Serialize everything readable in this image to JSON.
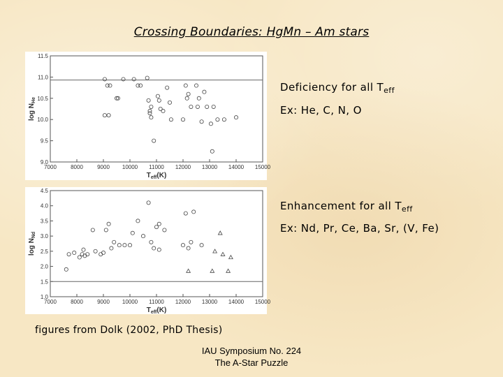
{
  "slide": {
    "title": "Crossing Boundaries:  HgMn – Am stars",
    "note1_text": "Deficiency for all T",
    "note1_sub": "eff",
    "note2_text": "Ex:  He, C, N, O",
    "note3_text": "Enhancement for all T",
    "note3_sub": "eff",
    "note4_text": "Ex:  Nd, Pr, Ce, Ba, Sr, (V, Fe)",
    "source": "figures from Dolk (2002, PhD Thesis)",
    "footer_line1": "IAU Symposium No. 224",
    "footer_line2": "The A-Star Puzzle"
  },
  "chart_data": [
    {
      "type": "scatter",
      "xlabel_main": "T",
      "xlabel_sub": "eff",
      "xlabel_end": "(K)",
      "ylabel_main": "log N",
      "ylabel_sub": "He",
      "xlim": [
        7000,
        15000
      ],
      "ylim": [
        9.0,
        11.5
      ],
      "xticks": [
        7000,
        8000,
        9000,
        10000,
        11000,
        12000,
        13000,
        14000,
        15000
      ],
      "yticks": [
        9.0,
        9.5,
        10.0,
        10.5,
        11.0,
        11.5
      ],
      "ytick_labels": [
        "9.0",
        "9.5",
        "10.0",
        "10.5",
        "11.0",
        "11.5"
      ],
      "reference_line": 10.93,
      "grid": false,
      "series": [
        {
          "marker": "circle",
          "x": [
            9050,
            9150,
            9250,
            9050,
            9200,
            9500,
            9550,
            9750,
            10150,
            10300,
            10400,
            10650,
            10700,
            10800,
            10750,
            10800,
            10900,
            11050,
            11100,
            11150,
            11250,
            11400,
            11500,
            11550,
            12000,
            12100,
            12150,
            12200,
            12300,
            12500,
            12600,
            12550,
            12700,
            12800,
            12900,
            13050,
            13150,
            13300,
            13100,
            10750,
            13550,
            14000
          ],
          "y": [
            10.95,
            10.8,
            10.8,
            10.1,
            10.1,
            10.5,
            10.5,
            10.95,
            10.95,
            10.8,
            10.8,
            10.98,
            10.45,
            10.3,
            10.2,
            10.05,
            9.5,
            10.55,
            10.45,
            10.25,
            10.2,
            10.75,
            10.4,
            10.0,
            10.0,
            10.8,
            10.5,
            10.6,
            10.3,
            10.8,
            10.5,
            10.3,
            9.95,
            10.65,
            10.3,
            9.9,
            10.3,
            10.0,
            9.25,
            10.15,
            10.0,
            10.05
          ]
        }
      ]
    },
    {
      "type": "scatter",
      "xlabel_main": "T",
      "xlabel_sub": "eff",
      "xlabel_end": "(K)",
      "ylabel_main": "log N",
      "ylabel_sub": "Nd",
      "xlim": [
        7000,
        15000
      ],
      "ylim": [
        1.0,
        4.5
      ],
      "xticks": [
        7000,
        8000,
        9000,
        10000,
        11000,
        12000,
        13000,
        14000,
        15000
      ],
      "yticks": [
        1.0,
        1.5,
        2.0,
        2.5,
        3.0,
        3.5,
        4.0,
        4.5
      ],
      "ytick_labels": [
        "1.0",
        "1.5",
        "2.0",
        "2.5",
        "3.0",
        "3.5",
        "4.0",
        "4.5"
      ],
      "reference_line": 1.5,
      "grid": false,
      "series": [
        {
          "marker": "circle",
          "x": [
            7600,
            7700,
            7900,
            8100,
            8200,
            8250,
            8300,
            8400,
            8600,
            8700,
            8900,
            9000,
            9100,
            9200,
            9300,
            9400,
            9600,
            9800,
            10000,
            10100,
            10300,
            10500,
            10700,
            10800,
            10900,
            11000,
            11100,
            11300,
            12000,
            12200,
            12300,
            12400,
            12700,
            11100,
            12100
          ],
          "y": [
            1.9,
            2.4,
            2.45,
            2.3,
            2.4,
            2.55,
            2.35,
            2.4,
            3.2,
            2.5,
            2.4,
            2.45,
            3.2,
            3.4,
            2.6,
            2.8,
            2.7,
            2.7,
            2.7,
            3.1,
            3.5,
            3.0,
            4.1,
            2.8,
            2.6,
            3.3,
            3.4,
            3.2,
            2.7,
            2.6,
            2.8,
            3.8,
            2.7,
            2.55,
            3.75
          ]
        },
        {
          "marker": "triangle",
          "x": [
            12200,
            13100,
            13200,
            13400,
            13700,
            13500,
            13800
          ],
          "y": [
            1.85,
            1.85,
            2.5,
            3.1,
            1.85,
            2.4,
            2.3
          ]
        }
      ]
    }
  ]
}
